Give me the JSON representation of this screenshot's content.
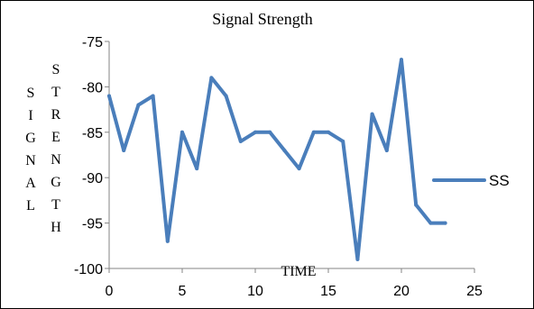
{
  "chart_data": {
    "type": "line",
    "title": "Signal Strength",
    "xlabel": "TIME",
    "ylabel_left": "SIGNAL",
    "ylabel_right": "STRENGTH",
    "xlim": [
      0,
      25
    ],
    "ylim": [
      -100,
      -75
    ],
    "xticks": [
      0,
      5,
      10,
      15,
      20,
      25
    ],
    "yticks": [
      -75,
      -80,
      -85,
      -90,
      -95,
      -100
    ],
    "grid": false,
    "legend_position": "right",
    "series": [
      {
        "name": "SS",
        "color": "#4a7ebb",
        "x": [
          0,
          1,
          2,
          3,
          4,
          5,
          6,
          7,
          8,
          9,
          10,
          11,
          12,
          13,
          14,
          15,
          16,
          17,
          18,
          19,
          20,
          21,
          22,
          23
        ],
        "y": [
          -81,
          -87,
          -82,
          -81,
          -97,
          -85,
          -89,
          -79,
          -81,
          -86,
          -85,
          -85,
          -87,
          -89,
          -85,
          -85,
          -86,
          -99,
          -83,
          -87,
          -77,
          -93,
          -95,
          -95
        ]
      }
    ]
  }
}
